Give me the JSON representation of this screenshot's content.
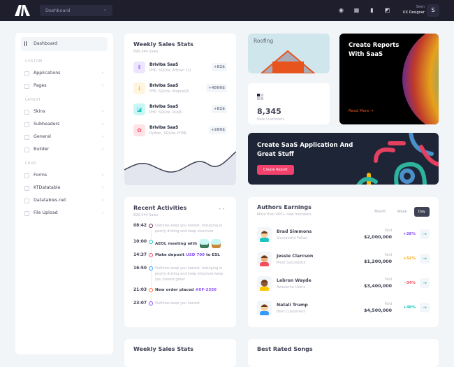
{
  "header": {
    "search_value": "Dashboard",
    "user_greeting": "Sean",
    "user_role": "UX Designer",
    "avatar_letter": "S"
  },
  "sidebar": {
    "active": "Dashboard",
    "sections": [
      {
        "title": "CUSTOM",
        "items": [
          "Applications",
          "Pages"
        ]
      },
      {
        "title": "LAYOUT",
        "items": [
          "Skins",
          "Subheaders",
          "General",
          "Builder"
        ]
      },
      {
        "title": "CRUD",
        "items": [
          "Forms",
          "KTDatatable",
          "Datatables.net",
          "File Upload"
        ]
      }
    ]
  },
  "weekly_sales": {
    "title": "Weekly Sales Stats",
    "subtitle": "890,344 Sales",
    "items": [
      {
        "name": "Briviba SaaS",
        "desc": "PHP, SQLite, Artisan CLI",
        "value": "+82$",
        "color": "#8950fc",
        "bg": "#eee5ff",
        "icon": "bars-icon"
      },
      {
        "name": "Briviba SaaS",
        "desc": "PHP, SQLite, AngularJS",
        "value": "+4500$",
        "color": "#ffa800",
        "bg": "#fff4de",
        "icon": "download-icon"
      },
      {
        "name": "Briviba SaaS",
        "desc": "PHP, SQLite, VueJS",
        "value": "+82$",
        "color": "#1bc5bd",
        "bg": "#c9f7f5",
        "icon": "layers-icon"
      },
      {
        "name": "Briviba SaaS",
        "desc": "Python, SQLite, HTML",
        "value": "+280$",
        "color": "#f64e60",
        "bg": "#ffe2e5",
        "icon": "flower-icon"
      }
    ]
  },
  "activities": {
    "title": "Recent Activities",
    "subtitle": "890,344 Sales",
    "items": [
      {
        "time": "08:42",
        "text": "Outlines keep you honest. Indulging in poorly driving and keep structure",
        "color": "#6d2f5c",
        "bold": false
      },
      {
        "time": "10:00",
        "text": "AEOL meeting with",
        "color": "#1bc5bd",
        "bold": true,
        "avatars": true
      },
      {
        "time": "14:37",
        "text": "Make deposit ",
        "link": "USD 700",
        "after": " to ESL",
        "color": "#f64e60",
        "bold": true
      },
      {
        "time": "16:50",
        "text": "Outlines keep you honest. Indulging in poorly driving and keep structure keep you honest great",
        "color": "#3699ff",
        "bold": false
      },
      {
        "time": "21:03",
        "text": "New order placed ",
        "link": "#XF-2356",
        "after": "",
        "color": "#ff6d2e",
        "bold": true
      },
      {
        "time": "23:07",
        "text": "Outlines keep you honest.",
        "color": "#8950fc",
        "bold": false
      }
    ]
  },
  "roofing": {
    "label": "Roofing"
  },
  "customers": {
    "value": "8,345",
    "label": "New Customers"
  },
  "reports": {
    "title": "Create Reports With SaaS",
    "link": "Read More"
  },
  "saas_banner": {
    "title": "Create SaaS Application And Great Stuff",
    "button": "Create Report"
  },
  "authors": {
    "title": "Authors Earnings",
    "subtitle": "More than 400+ new members",
    "tabs": [
      "Month",
      "Week",
      "Day"
    ],
    "active_tab": "Day",
    "rows": [
      {
        "name": "Brad Simmons",
        "desc": "Successful Fellas",
        "paid_label": "Paid",
        "amount": "$2,000,000",
        "change": "+28%",
        "color": "#8950fc"
      },
      {
        "name": "Jessie Clarcson",
        "desc": "Most Successful",
        "paid_label": "Paid",
        "amount": "$1,200,000",
        "change": "+52%",
        "color": "#ffa800"
      },
      {
        "name": "Lebron Wayde",
        "desc": "Awesome Users",
        "paid_label": "Paid",
        "amount": "$3,400,000",
        "change": "-34%",
        "color": "#f64e60"
      },
      {
        "name": "Natali Trump",
        "desc": "Best Customers",
        "paid_label": "Paid",
        "amount": "$4,500,000",
        "change": "+48%",
        "color": "#1bc5bd"
      }
    ]
  },
  "bottom": {
    "left_title": "Weekly Sales Stats",
    "right_title": "Best Rated Songs"
  }
}
